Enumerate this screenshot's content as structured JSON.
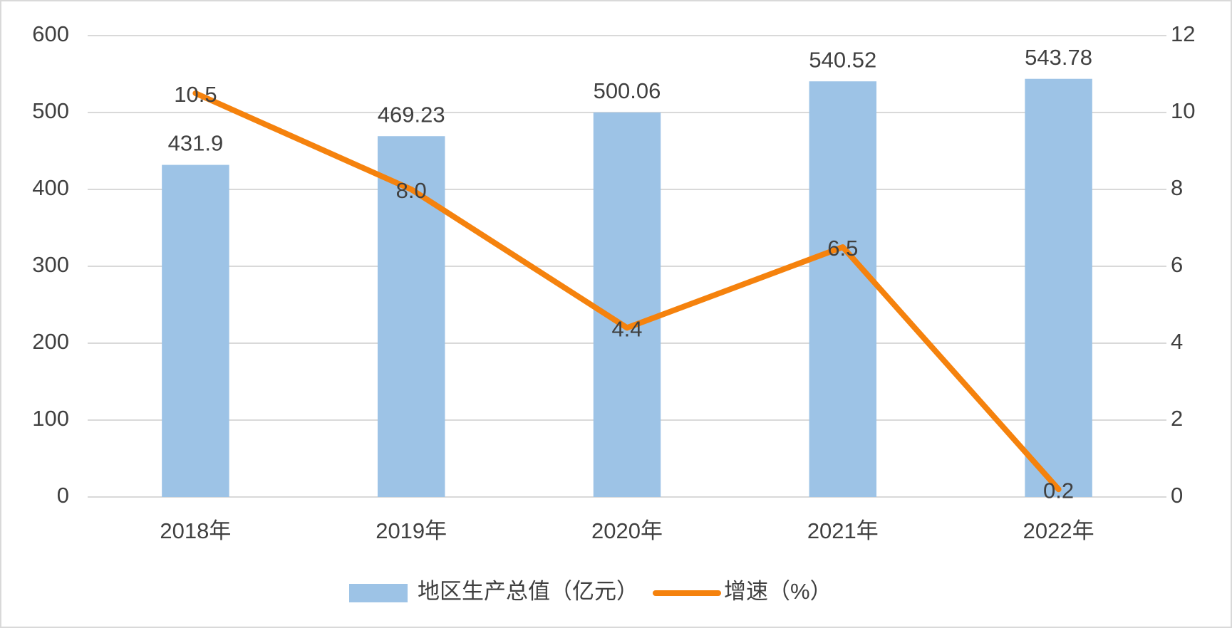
{
  "chart_data": {
    "type": "combo",
    "categories": [
      "2018年",
      "2019年",
      "2020年",
      "2021年",
      "2022年"
    ],
    "series": [
      {
        "name": "地区生产总值（亿元）",
        "type": "bar",
        "color": "#9dc3e6",
        "values": [
          431.9,
          469.23,
          500.06,
          540.52,
          543.78
        ]
      },
      {
        "name": "增速（%）",
        "type": "line",
        "axis": "y2",
        "color": "#f5820d",
        "values": [
          10.5,
          8.0,
          4.4,
          6.5,
          0.2
        ],
        "value_labels": [
          "10.5",
          "8.0",
          "4.4",
          "6.5",
          "0.2"
        ]
      }
    ],
    "ylim": [
      0,
      600
    ],
    "yticks": [
      0,
      100,
      200,
      300,
      400,
      500,
      600
    ],
    "y2lim": [
      0,
      12
    ],
    "y2ticks": [
      0,
      2,
      4,
      6,
      8,
      10,
      12
    ],
    "grid": true,
    "legend": "bottom"
  }
}
